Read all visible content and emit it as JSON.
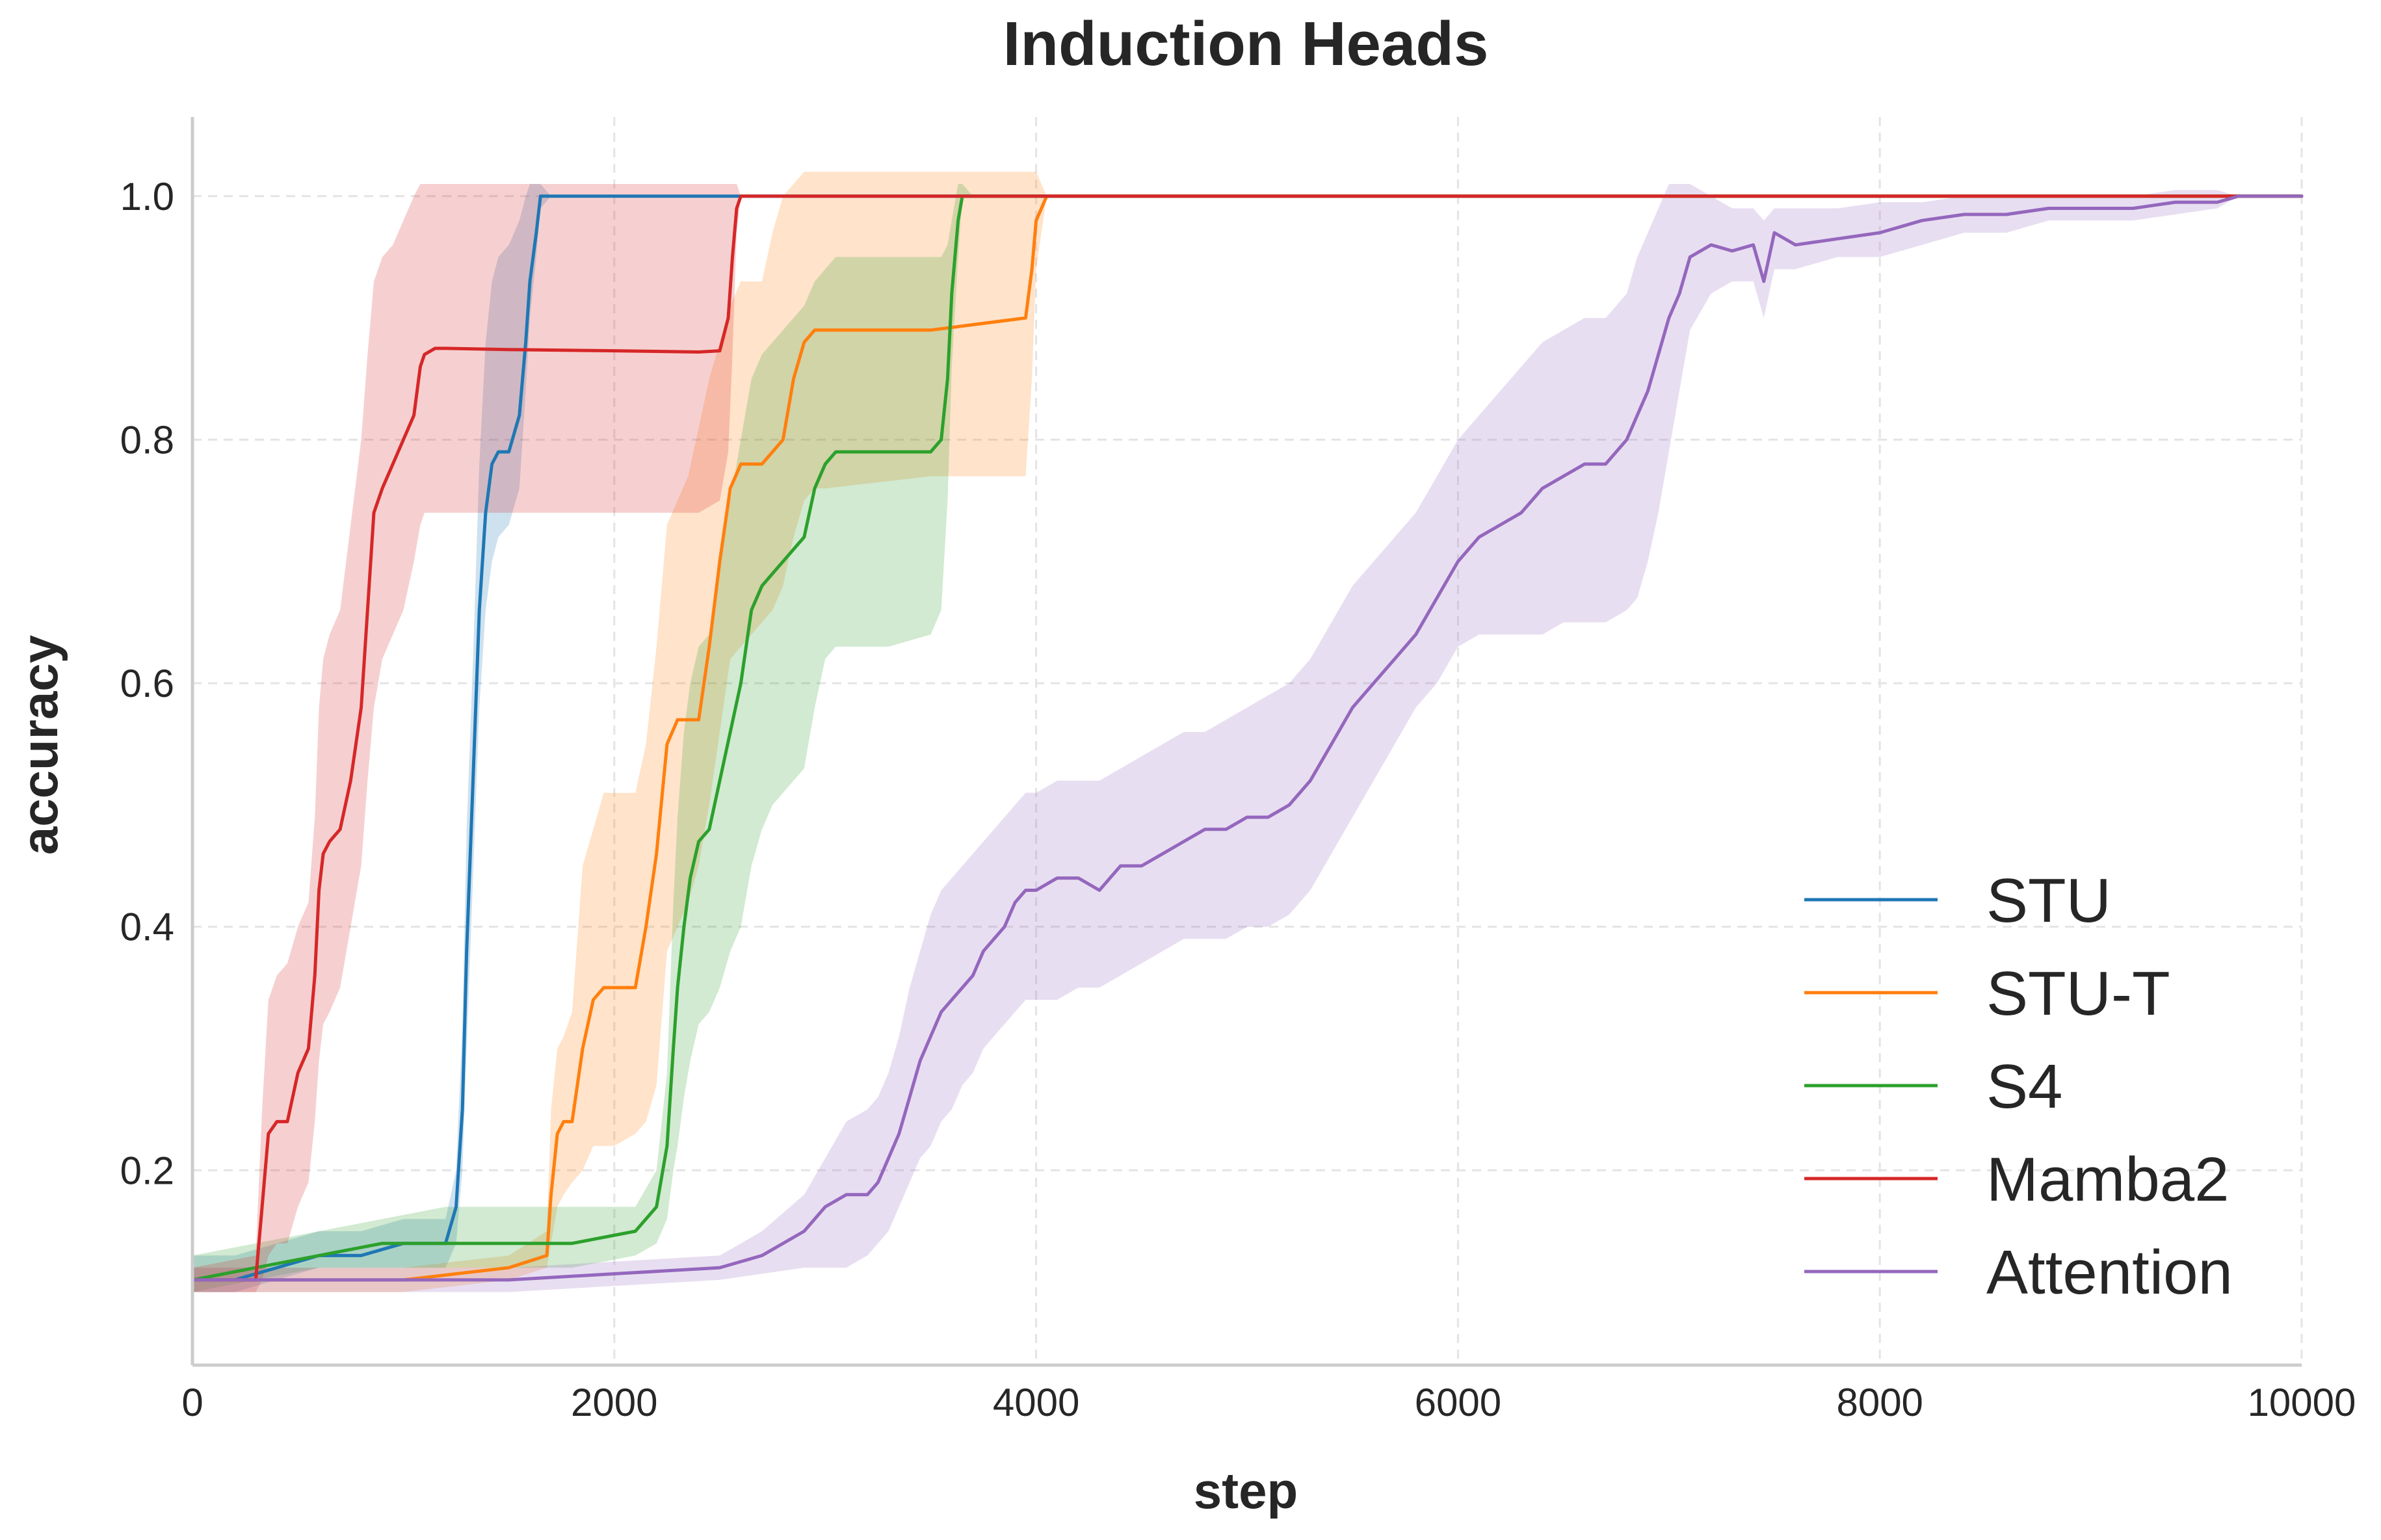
{
  "chart_data": {
    "type": "line",
    "title": "Induction Heads",
    "xlabel": "step",
    "ylabel": "accuracy",
    "xlim": [
      0,
      10000
    ],
    "ylim": [
      0.04,
      1.065
    ],
    "xticks": [
      0,
      2000,
      4000,
      6000,
      8000,
      10000
    ],
    "xtick_labels": [
      "0",
      "2000",
      "4000",
      "6000",
      "8000",
      "10000"
    ],
    "yticks": [
      0.2,
      0.4,
      0.6,
      0.8,
      1.0
    ],
    "ytick_labels": [
      "0.2",
      "0.4",
      "0.6",
      "0.8",
      "1.0"
    ],
    "grid": true,
    "legend_position": "lower-right",
    "series": [
      {
        "name": "STU",
        "color": "#1f77b4",
        "x": [
          0,
          200,
          400,
          600,
          800,
          1000,
          1100,
          1200,
          1250,
          1280,
          1300,
          1330,
          1360,
          1390,
          1420,
          1450,
          1500,
          1550,
          1580,
          1600,
          1630,
          1650,
          1700,
          2000,
          2500,
          2700,
          10000
        ],
        "y": [
          0.11,
          0.11,
          0.12,
          0.13,
          0.13,
          0.14,
          0.14,
          0.14,
          0.17,
          0.25,
          0.38,
          0.52,
          0.66,
          0.74,
          0.78,
          0.79,
          0.79,
          0.82,
          0.88,
          0.93,
          0.97,
          1.0,
          1.0,
          1.0,
          1.0,
          1.0,
          1.0
        ],
        "lower": [
          0.1,
          0.1,
          0.11,
          0.12,
          0.12,
          0.12,
          0.12,
          0.12,
          0.14,
          0.2,
          0.3,
          0.44,
          0.58,
          0.66,
          0.7,
          0.72,
          0.73,
          0.76,
          0.84,
          0.9,
          0.95,
          0.99,
          1.0,
          1.0,
          1.0,
          1.0,
          1.0
        ],
        "upper": [
          0.13,
          0.13,
          0.14,
          0.15,
          0.15,
          0.16,
          0.16,
          0.16,
          0.2,
          0.32,
          0.48,
          0.62,
          0.78,
          0.88,
          0.93,
          0.95,
          0.96,
          0.98,
          1.0,
          1.01,
          1.01,
          1.01,
          1.0,
          1.0,
          1.0,
          1.0,
          1.0
        ]
      },
      {
        "name": "STU-T",
        "color": "#ff7f0e",
        "x": [
          0,
          500,
          1000,
          1500,
          1680,
          1700,
          1730,
          1760,
          1800,
          1850,
          1900,
          1950,
          2000,
          2100,
          2150,
          2200,
          2250,
          2300,
          2350,
          2400,
          2450,
          2500,
          2550,
          2600,
          2650,
          2700,
          2750,
          2800,
          2850,
          2900,
          2950,
          3000,
          3500,
          3950,
          3980,
          4000,
          4050,
          10000
        ],
        "y": [
          0.11,
          0.11,
          0.11,
          0.12,
          0.13,
          0.18,
          0.23,
          0.24,
          0.24,
          0.3,
          0.34,
          0.35,
          0.35,
          0.35,
          0.4,
          0.46,
          0.55,
          0.57,
          0.57,
          0.57,
          0.63,
          0.7,
          0.76,
          0.78,
          0.78,
          0.78,
          0.79,
          0.8,
          0.85,
          0.88,
          0.89,
          0.89,
          0.89,
          0.9,
          0.94,
          0.98,
          1.0,
          1.0
        ],
        "lower": [
          0.1,
          0.1,
          0.1,
          0.11,
          0.12,
          0.14,
          0.17,
          0.18,
          0.19,
          0.2,
          0.22,
          0.22,
          0.22,
          0.23,
          0.24,
          0.27,
          0.38,
          0.4,
          0.42,
          0.45,
          0.5,
          0.56,
          0.62,
          0.63,
          0.64,
          0.65,
          0.66,
          0.68,
          0.72,
          0.75,
          0.76,
          0.76,
          0.77,
          0.77,
          0.85,
          0.94,
          1.0,
          1.0
        ],
        "upper": [
          0.12,
          0.12,
          0.12,
          0.13,
          0.15,
          0.25,
          0.3,
          0.31,
          0.33,
          0.45,
          0.48,
          0.51,
          0.51,
          0.51,
          0.55,
          0.63,
          0.73,
          0.75,
          0.77,
          0.81,
          0.85,
          0.88,
          0.91,
          0.93,
          0.93,
          0.93,
          0.97,
          1.0,
          1.01,
          1.02,
          1.02,
          1.02,
          1.02,
          1.02,
          1.02,
          1.02,
          1.0,
          1.0
        ]
      },
      {
        "name": "S4",
        "color": "#2ca02c",
        "x": [
          0,
          300,
          600,
          900,
          1200,
          1500,
          1800,
          2100,
          2200,
          2250,
          2280,
          2300,
          2330,
          2360,
          2400,
          2450,
          2500,
          2550,
          2600,
          2650,
          2700,
          2750,
          2800,
          2850,
          2900,
          2950,
          3000,
          3050,
          3100,
          3300,
          3500,
          3550,
          3580,
          3600,
          3630,
          3650,
          3700,
          10000
        ],
        "y": [
          0.11,
          0.12,
          0.13,
          0.14,
          0.14,
          0.14,
          0.14,
          0.15,
          0.17,
          0.22,
          0.3,
          0.35,
          0.4,
          0.44,
          0.47,
          0.48,
          0.52,
          0.56,
          0.6,
          0.66,
          0.68,
          0.69,
          0.7,
          0.71,
          0.72,
          0.76,
          0.78,
          0.79,
          0.79,
          0.79,
          0.79,
          0.8,
          0.85,
          0.92,
          0.98,
          1.0,
          1.0,
          1.0
        ],
        "lower": [
          0.1,
          0.11,
          0.12,
          0.12,
          0.12,
          0.12,
          0.12,
          0.13,
          0.14,
          0.16,
          0.2,
          0.22,
          0.26,
          0.29,
          0.32,
          0.33,
          0.35,
          0.38,
          0.4,
          0.45,
          0.48,
          0.5,
          0.51,
          0.52,
          0.53,
          0.58,
          0.62,
          0.63,
          0.63,
          0.63,
          0.64,
          0.66,
          0.75,
          0.86,
          0.95,
          1.0,
          1.0,
          1.0
        ],
        "upper": [
          0.13,
          0.14,
          0.15,
          0.16,
          0.17,
          0.17,
          0.17,
          0.17,
          0.2,
          0.28,
          0.42,
          0.49,
          0.56,
          0.6,
          0.63,
          0.64,
          0.7,
          0.75,
          0.8,
          0.85,
          0.87,
          0.88,
          0.89,
          0.9,
          0.91,
          0.93,
          0.94,
          0.95,
          0.95,
          0.95,
          0.95,
          0.95,
          0.96,
          0.98,
          1.01,
          1.01,
          1.0,
          1.0
        ]
      },
      {
        "name": "Mamba2",
        "color": "#d62728",
        "x": [
          0,
          300,
          330,
          360,
          400,
          450,
          500,
          550,
          580,
          600,
          620,
          650,
          700,
          750,
          800,
          830,
          860,
          900,
          950,
          1000,
          1050,
          1080,
          1100,
          1150,
          1200,
          1500,
          2000,
          2400,
          2500,
          2540,
          2560,
          2580,
          2600,
          2700,
          10000
        ],
        "y": [
          0.11,
          0.11,
          0.17,
          0.23,
          0.24,
          0.24,
          0.28,
          0.3,
          0.36,
          0.43,
          0.46,
          0.47,
          0.48,
          0.52,
          0.58,
          0.66,
          0.74,
          0.76,
          0.78,
          0.8,
          0.82,
          0.86,
          0.87,
          0.875,
          0.875,
          0.874,
          0.873,
          0.872,
          0.873,
          0.9,
          0.95,
          0.99,
          1.0,
          1.0,
          1.0
        ],
        "lower": [
          0.1,
          0.1,
          0.11,
          0.13,
          0.14,
          0.14,
          0.17,
          0.19,
          0.24,
          0.29,
          0.32,
          0.33,
          0.35,
          0.4,
          0.45,
          0.52,
          0.58,
          0.62,
          0.64,
          0.66,
          0.7,
          0.73,
          0.74,
          0.74,
          0.74,
          0.74,
          0.74,
          0.74,
          0.75,
          0.79,
          0.87,
          0.97,
          1.0,
          1.0,
          1.0
        ],
        "upper": [
          0.12,
          0.13,
          0.25,
          0.34,
          0.36,
          0.37,
          0.4,
          0.42,
          0.49,
          0.58,
          0.62,
          0.64,
          0.66,
          0.73,
          0.8,
          0.87,
          0.93,
          0.95,
          0.96,
          0.98,
          1.0,
          1.01,
          1.01,
          1.01,
          1.01,
          1.01,
          1.01,
          1.01,
          1.01,
          1.01,
          1.01,
          1.01,
          1.0,
          1.0,
          1.0
        ]
      },
      {
        "name": "Attention",
        "color": "#9467bd",
        "x": [
          0,
          500,
          1000,
          1500,
          2000,
          2500,
          2700,
          2900,
          3000,
          3100,
          3200,
          3250,
          3300,
          3350,
          3400,
          3450,
          3500,
          3550,
          3600,
          3650,
          3700,
          3750,
          3800,
          3850,
          3900,
          3950,
          4000,
          4100,
          4200,
          4300,
          4400,
          4500,
          4600,
          4700,
          4800,
          4900,
          5000,
          5100,
          5200,
          5300,
          5400,
          5500,
          5600,
          5700,
          5800,
          5900,
          6000,
          6100,
          6200,
          6300,
          6400,
          6500,
          6600,
          6700,
          6800,
          6850,
          6900,
          6950,
          7000,
          7050,
          7100,
          7200,
          7300,
          7400,
          7450,
          7500,
          7600,
          7800,
          8000,
          8200,
          8400,
          8600,
          8800,
          9000,
          9200,
          9400,
          9600,
          9700,
          10000
        ],
        "y": [
          0.11,
          0.11,
          0.11,
          0.11,
          0.115,
          0.12,
          0.13,
          0.15,
          0.17,
          0.18,
          0.18,
          0.19,
          0.21,
          0.23,
          0.26,
          0.29,
          0.31,
          0.33,
          0.34,
          0.35,
          0.36,
          0.38,
          0.39,
          0.4,
          0.42,
          0.43,
          0.43,
          0.44,
          0.44,
          0.43,
          0.45,
          0.45,
          0.46,
          0.47,
          0.48,
          0.48,
          0.49,
          0.49,
          0.5,
          0.52,
          0.55,
          0.58,
          0.6,
          0.62,
          0.64,
          0.67,
          0.7,
          0.72,
          0.73,
          0.74,
          0.76,
          0.77,
          0.78,
          0.78,
          0.8,
          0.82,
          0.84,
          0.87,
          0.9,
          0.92,
          0.95,
          0.96,
          0.955,
          0.96,
          0.93,
          0.97,
          0.96,
          0.965,
          0.97,
          0.98,
          0.985,
          0.985,
          0.99,
          0.99,
          0.99,
          0.995,
          0.995,
          1.0,
          1.0
        ],
        "lower": [
          0.1,
          0.1,
          0.1,
          0.1,
          0.105,
          0.11,
          0.115,
          0.12,
          0.12,
          0.12,
          0.13,
          0.14,
          0.15,
          0.17,
          0.19,
          0.21,
          0.22,
          0.24,
          0.25,
          0.27,
          0.28,
          0.3,
          0.31,
          0.32,
          0.33,
          0.34,
          0.34,
          0.34,
          0.35,
          0.35,
          0.36,
          0.37,
          0.38,
          0.39,
          0.39,
          0.39,
          0.4,
          0.4,
          0.41,
          0.43,
          0.46,
          0.49,
          0.52,
          0.55,
          0.58,
          0.6,
          0.63,
          0.64,
          0.64,
          0.64,
          0.64,
          0.65,
          0.65,
          0.65,
          0.66,
          0.67,
          0.7,
          0.74,
          0.79,
          0.84,
          0.89,
          0.92,
          0.93,
          0.93,
          0.9,
          0.94,
          0.94,
          0.95,
          0.95,
          0.96,
          0.97,
          0.97,
          0.98,
          0.98,
          0.98,
          0.985,
          0.99,
          1.0,
          1.0
        ],
        "upper": [
          0.12,
          0.12,
          0.12,
          0.12,
          0.125,
          0.13,
          0.15,
          0.18,
          0.21,
          0.24,
          0.25,
          0.26,
          0.28,
          0.31,
          0.35,
          0.38,
          0.41,
          0.43,
          0.44,
          0.45,
          0.46,
          0.47,
          0.48,
          0.49,
          0.5,
          0.51,
          0.51,
          0.52,
          0.52,
          0.52,
          0.53,
          0.54,
          0.55,
          0.56,
          0.56,
          0.57,
          0.58,
          0.59,
          0.6,
          0.62,
          0.65,
          0.68,
          0.7,
          0.72,
          0.74,
          0.77,
          0.8,
          0.82,
          0.84,
          0.86,
          0.88,
          0.89,
          0.9,
          0.9,
          0.92,
          0.95,
          0.97,
          0.99,
          1.01,
          1.01,
          1.01,
          1.0,
          0.99,
          0.99,
          0.98,
          0.99,
          0.99,
          0.99,
          0.995,
          0.995,
          1.0,
          1.0,
          1.0,
          1.0,
          1.0,
          1.005,
          1.005,
          1.0,
          1.0
        ]
      }
    ]
  }
}
